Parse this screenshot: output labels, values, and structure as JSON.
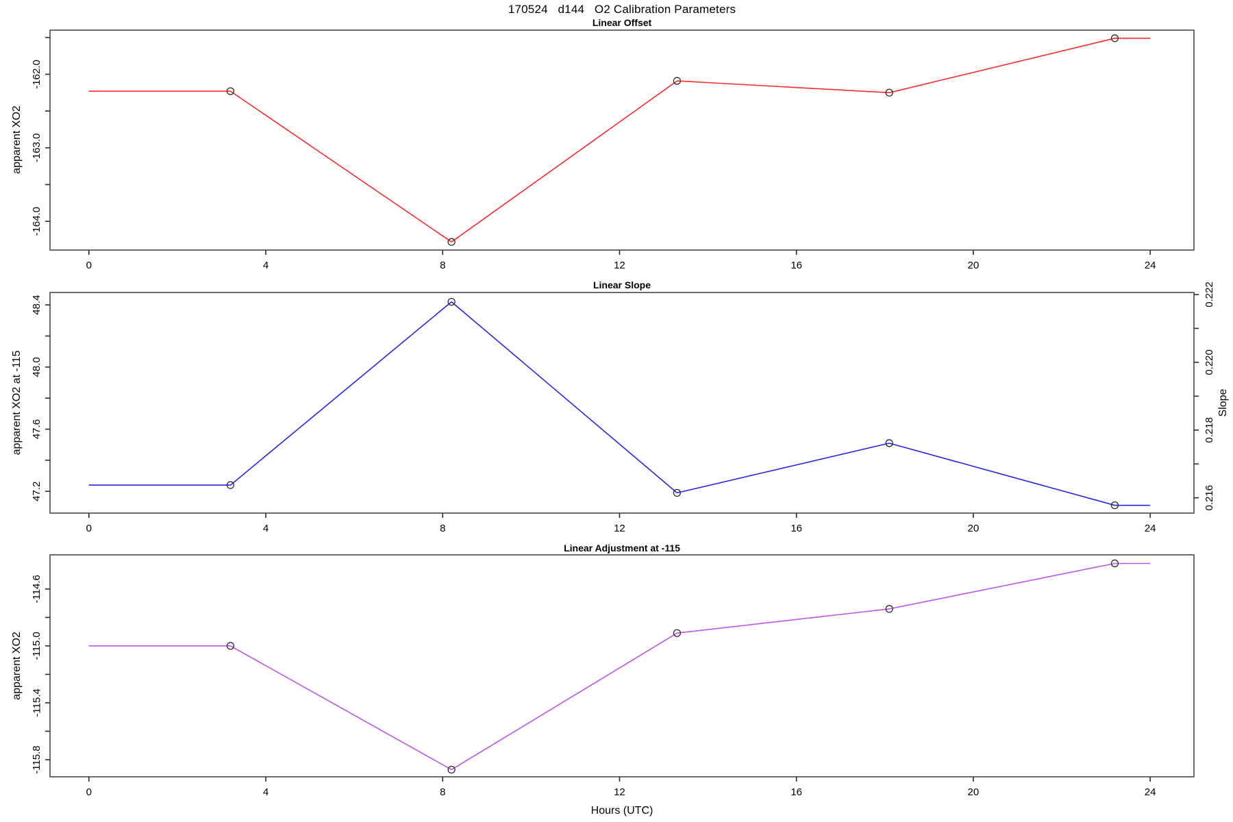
{
  "page": {
    "title": "170524   d144   O2 Calibration Parameters",
    "xlabel": "Hours (UTC)",
    "background": "#ffffff",
    "frame_color": "#4a4a4a",
    "tick_color": "#2a2a2a"
  },
  "chart_data": [
    {
      "type": "line",
      "title": "Linear Offset",
      "ylabel": "apparent XO2",
      "color": "#ff2828",
      "marker": "open-circle",
      "x": [
        3.2,
        8.2,
        13.3,
        18.1,
        23.2
      ],
      "y": [
        -162.23,
        -164.28,
        -162.09,
        -162.25,
        -161.51
      ],
      "line_x": [
        0,
        3.2,
        8.2,
        13.3,
        18.1,
        23.2,
        24
      ],
      "line_y": [
        -162.23,
        -162.23,
        -164.28,
        -162.09,
        -162.25,
        -161.51,
        -161.51
      ],
      "xlim": [
        -0.88,
        24.99
      ],
      "ylim": [
        -164.39,
        -161.4
      ],
      "xticks": [
        0,
        4,
        8,
        12,
        16,
        20,
        24
      ],
      "xtick_labels": [
        "0",
        "4",
        "8",
        "12",
        "16",
        "20",
        "24"
      ],
      "yticks": [
        -161.5,
        -162.0,
        -162.5,
        -163.0,
        -163.5,
        -164.0
      ],
      "ytick_labels": [
        "",
        "-162.0",
        "",
        "-163.0",
        "",
        "-164.0"
      ],
      "grid": false
    },
    {
      "type": "line",
      "title": "Linear Slope",
      "ylabel": "apparent XO2 at -115",
      "color": "#2525e8",
      "marker": "open-circle",
      "x": [
        3.2,
        8.2,
        13.3,
        18.1,
        23.2
      ],
      "y": [
        47.24,
        48.42,
        47.19,
        47.51,
        47.11
      ],
      "line_x": [
        0,
        3.2,
        8.2,
        13.3,
        18.1,
        23.2,
        24
      ],
      "line_y": [
        47.24,
        47.24,
        48.42,
        47.19,
        47.51,
        47.11,
        47.11
      ],
      "xlim": [
        -0.88,
        24.99
      ],
      "ylim": [
        47.06,
        48.48
      ],
      "xticks": [
        0,
        4,
        8,
        12,
        16,
        20,
        24
      ],
      "xtick_labels": [
        "0",
        "4",
        "8",
        "12",
        "16",
        "20",
        "24"
      ],
      "yticks": [
        47.2,
        47.4,
        47.6,
        47.8,
        48.0,
        48.2,
        48.4
      ],
      "ytick_labels": [
        "47.2",
        "",
        "47.6",
        "",
        "48.0",
        "",
        "48.4"
      ],
      "right_axis": {
        "label": "Slope",
        "lim": [
          0.21555,
          0.22206
        ],
        "ticks": [
          0.216,
          0.217,
          0.218,
          0.219,
          0.22,
          0.221,
          0.222
        ],
        "tick_labels": [
          "0.216",
          "",
          "0.218",
          "",
          "0.220",
          "",
          "0.222"
        ]
      },
      "grid": false
    },
    {
      "type": "line",
      "title": "Linear Adjustment at -115",
      "ylabel": "apparent XO2",
      "color": "#bd52ee",
      "marker": "open-circle",
      "x": [
        3.2,
        8.2,
        13.3,
        18.1,
        23.2
      ],
      "y": [
        -115.0,
        -115.87,
        -114.91,
        -114.74,
        -114.42
      ],
      "line_x": [
        0,
        3.2,
        8.2,
        13.3,
        18.1,
        23.2,
        24
      ],
      "line_y": [
        -115.0,
        -115.0,
        -115.87,
        -114.91,
        -114.74,
        -114.42,
        -114.42
      ],
      "xlim": [
        -0.88,
        24.99
      ],
      "ylim": [
        -115.92,
        -114.36
      ],
      "xticks": [
        0,
        4,
        8,
        12,
        16,
        20,
        24
      ],
      "xtick_labels": [
        "0",
        "4",
        "8",
        "12",
        "16",
        "20",
        "24"
      ],
      "yticks": [
        -115.8,
        -115.6,
        -115.4,
        -115.2,
        -115.0,
        -114.8,
        -114.6
      ],
      "ytick_labels": [
        "-115.8",
        "",
        "-115.4",
        "",
        "-115.0",
        "",
        "-114.6"
      ],
      "grid": false
    }
  ]
}
